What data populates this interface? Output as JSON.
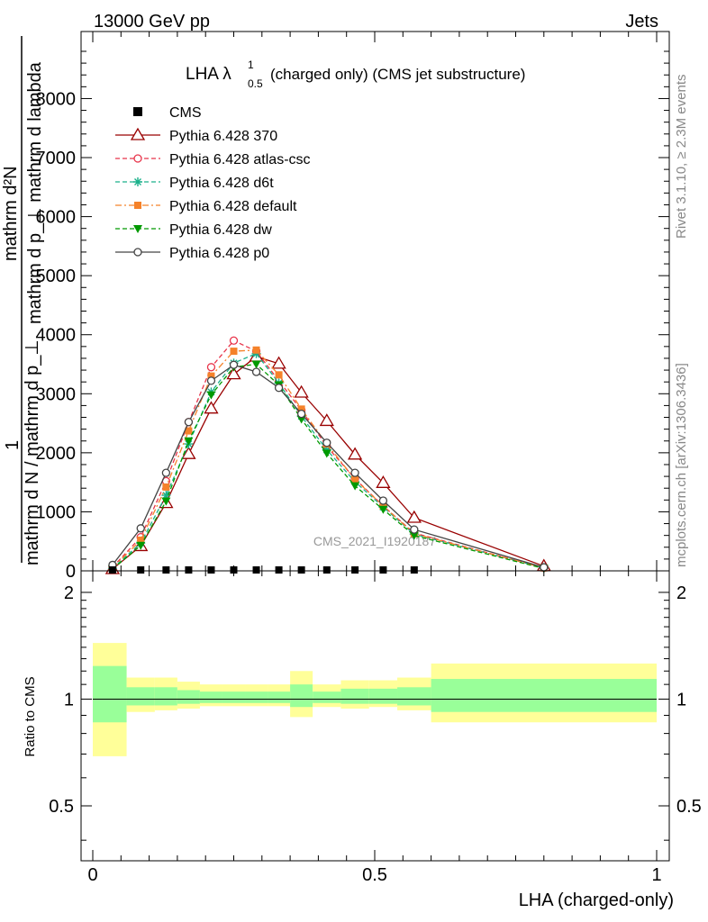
{
  "header": {
    "left": "13000 GeV pp",
    "right": "Jets"
  },
  "side_text": {
    "rivet": "Rivet 3.1.10, ≥ 2.3M events",
    "mcplots": "mcplots.cern.ch [arXiv:1306.3436]"
  },
  "chart_data": {
    "type": "line",
    "title_main": "LHA λ",
    "title_sup": "1",
    "title_sub": "0.5",
    "title_rest": "(charged only) (CMS jet substructure)",
    "watermark": "CMS_2021_I1920187",
    "xlabel": "LHA (charged-only)",
    "ylabel_top": "1",
    "ylabel_numer": "mathrm d²N",
    "ylabel_numer2": "mathrm d p_⊥ mathrm d lambda",
    "ylabel_denom": "mathrm d N / mathrm d p_⊥",
    "xlim": [
      0,
      1
    ],
    "ylim": [
      0,
      8800
    ],
    "ratio_ylabel": "Ratio to CMS",
    "ratio_ylim": [
      0.35,
      2.3
    ],
    "x_ticks": [
      0,
      0.5,
      1
    ],
    "x_tick_labels": [
      "0",
      "0.5",
      "1"
    ],
    "y_ticks": [
      0,
      1000,
      2000,
      3000,
      4000,
      5000,
      6000,
      7000,
      8000
    ],
    "y_tick_labels": [
      "0",
      "1000",
      "2000",
      "3000",
      "4000",
      "5000",
      "6000",
      "7000",
      "8000"
    ],
    "ratio_ticks": [
      0.5,
      1,
      2
    ],
    "ratio_tick_labels": [
      "0.5",
      "1",
      "2"
    ],
    "legend_position": "top-left",
    "data_series": {
      "name": "CMS",
      "x": [
        0.035,
        0.085,
        0.13,
        0.17,
        0.21,
        0.25,
        0.29,
        0.33,
        0.37,
        0.415,
        0.465,
        0.515,
        0.57
      ],
      "y": [
        0,
        0,
        0,
        0,
        0,
        0,
        0,
        0,
        0,
        0,
        0,
        0,
        0
      ]
    },
    "series": [
      {
        "name": "Pythia 6.428 370",
        "color": "#990000",
        "marker": "triangle-open",
        "dash": "solid",
        "x": [
          0.035,
          0.085,
          0.13,
          0.17,
          0.21,
          0.25,
          0.29,
          0.33,
          0.37,
          0.415,
          0.465,
          0.515,
          0.57,
          0.8
        ],
        "y": [
          30,
          420,
          1150,
          1980,
          2750,
          3330,
          3630,
          3510,
          3020,
          2540,
          1970,
          1490,
          900,
          80
        ]
      },
      {
        "name": "Pythia 6.428 atlas-csc",
        "color": "#e8344a",
        "marker": "circle-open",
        "dash": "dashed",
        "x": [
          0.035,
          0.085,
          0.13,
          0.17,
          0.21,
          0.25,
          0.29,
          0.33,
          0.37,
          0.415,
          0.465,
          0.515,
          0.57,
          0.8
        ],
        "y": [
          60,
          570,
          1520,
          2520,
          3450,
          3900,
          3720,
          3220,
          2720,
          2110,
          1560,
          1100,
          640,
          50
        ]
      },
      {
        "name": "Pythia 6.428 d6t",
        "color": "#1ab08a",
        "marker": "star",
        "dash": "dashed",
        "x": [
          0.035,
          0.085,
          0.13,
          0.17,
          0.21,
          0.25,
          0.29,
          0.33,
          0.37,
          0.415,
          0.465,
          0.515,
          0.57,
          0.8
        ],
        "y": [
          40,
          470,
          1280,
          2150,
          3030,
          3520,
          3680,
          3180,
          2620,
          2050,
          1510,
          1080,
          620,
          50
        ]
      },
      {
        "name": "Pythia 6.428 default",
        "color": "#f5822a",
        "marker": "square",
        "dash": "dashdot",
        "x": [
          0.035,
          0.085,
          0.13,
          0.17,
          0.21,
          0.25,
          0.29,
          0.33,
          0.37,
          0.415,
          0.465,
          0.515,
          0.57,
          0.8
        ],
        "y": [
          50,
          520,
          1420,
          2370,
          3300,
          3720,
          3740,
          3320,
          2740,
          2150,
          1550,
          1100,
          630,
          50
        ]
      },
      {
        "name": "Pythia 6.428 dw",
        "color": "#009900",
        "marker": "triangle-down",
        "dash": "dashed",
        "x": [
          0.035,
          0.085,
          0.13,
          0.17,
          0.21,
          0.25,
          0.29,
          0.33,
          0.37,
          0.415,
          0.465,
          0.515,
          0.57,
          0.8
        ],
        "y": [
          30,
          430,
          1180,
          2200,
          2980,
          3450,
          3500,
          3150,
          2570,
          1990,
          1440,
          1040,
          600,
          40
        ]
      },
      {
        "name": "Pythia 6.428 p0",
        "color": "#444444",
        "marker": "circle-open",
        "dash": "solid",
        "x": [
          0.035,
          0.085,
          0.13,
          0.17,
          0.21,
          0.25,
          0.29,
          0.33,
          0.37,
          0.415,
          0.465,
          0.515,
          0.57,
          0.8
        ],
        "y": [
          100,
          720,
          1660,
          2520,
          3220,
          3490,
          3370,
          3100,
          2660,
          2170,
          1660,
          1190,
          700,
          60
        ]
      }
    ],
    "ratio_bands": [
      {
        "x0": 0.0,
        "x1": 0.06,
        "stat": [
          0.86,
          1.24
        ],
        "total": [
          0.69,
          1.44
        ]
      },
      {
        "x0": 0.06,
        "x1": 0.11,
        "stat": [
          0.96,
          1.08
        ],
        "total": [
          0.92,
          1.15
        ]
      },
      {
        "x0": 0.11,
        "x1": 0.15,
        "stat": [
          0.96,
          1.08
        ],
        "total": [
          0.93,
          1.15
        ]
      },
      {
        "x0": 0.15,
        "x1": 0.19,
        "stat": [
          0.97,
          1.06
        ],
        "total": [
          0.94,
          1.12
        ]
      },
      {
        "x0": 0.19,
        "x1": 0.23,
        "stat": [
          0.975,
          1.05
        ],
        "total": [
          0.955,
          1.1
        ]
      },
      {
        "x0": 0.23,
        "x1": 0.27,
        "stat": [
          0.975,
          1.05
        ],
        "total": [
          0.955,
          1.1
        ]
      },
      {
        "x0": 0.27,
        "x1": 0.31,
        "stat": [
          0.975,
          1.05
        ],
        "total": [
          0.955,
          1.1
        ]
      },
      {
        "x0": 0.31,
        "x1": 0.35,
        "stat": [
          0.975,
          1.05
        ],
        "total": [
          0.955,
          1.1
        ]
      },
      {
        "x0": 0.35,
        "x1": 0.39,
        "stat": [
          0.95,
          1.1
        ],
        "total": [
          0.89,
          1.2
        ]
      },
      {
        "x0": 0.39,
        "x1": 0.44,
        "stat": [
          0.975,
          1.05
        ],
        "total": [
          0.95,
          1.1
        ]
      },
      {
        "x0": 0.44,
        "x1": 0.49,
        "stat": [
          0.97,
          1.07
        ],
        "total": [
          0.94,
          1.13
        ]
      },
      {
        "x0": 0.49,
        "x1": 0.54,
        "stat": [
          0.97,
          1.07
        ],
        "total": [
          0.95,
          1.13
        ]
      },
      {
        "x0": 0.54,
        "x1": 0.6,
        "stat": [
          0.96,
          1.08
        ],
        "total": [
          0.93,
          1.15
        ]
      },
      {
        "x0": 0.6,
        "x1": 1.0,
        "stat": [
          0.92,
          1.14
        ],
        "total": [
          0.86,
          1.26
        ]
      }
    ]
  }
}
